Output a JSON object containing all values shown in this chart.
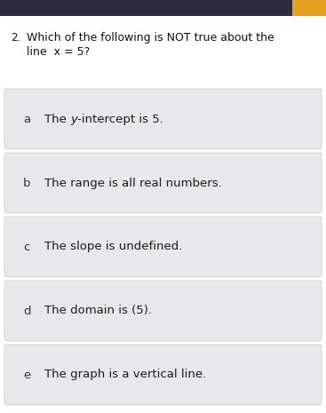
{
  "background_color": "#f2f2f2",
  "page_bg": "#ffffff",
  "top_bar_color": "#2c2c3e",
  "orange_btn_color": "#e8a020",
  "question_number": "2.",
  "question_text_line1": "Which of the following is NOT true about the",
  "question_text_line2": "line  x = 5?",
  "options": [
    {
      "letter": "a",
      "text_parts": [
        [
          "The ",
          false
        ],
        [
          "y",
          true
        ],
        [
          "-intercept is 5.",
          false
        ]
      ]
    },
    {
      "letter": "b",
      "text_parts": [
        [
          "The range is all real numbers.",
          false
        ]
      ]
    },
    {
      "letter": "c",
      "text_parts": [
        [
          "The slope is undefined.",
          false
        ]
      ]
    },
    {
      "letter": "d",
      "text_parts": [
        [
          "The domain is (5).",
          false
        ]
      ]
    },
    {
      "letter": "e",
      "text_parts": [
        [
          "The graph is a vertical line.",
          false
        ]
      ]
    }
  ],
  "option_box_facecolor": "#e8e8ea",
  "option_box_edgecolor": "#cccccc",
  "option_text_color": "#1a1a1a",
  "letter_color": "#333333",
  "question_text_color": "#111111",
  "figsize": [
    3.67,
    4.65
  ],
  "dpi": 100
}
